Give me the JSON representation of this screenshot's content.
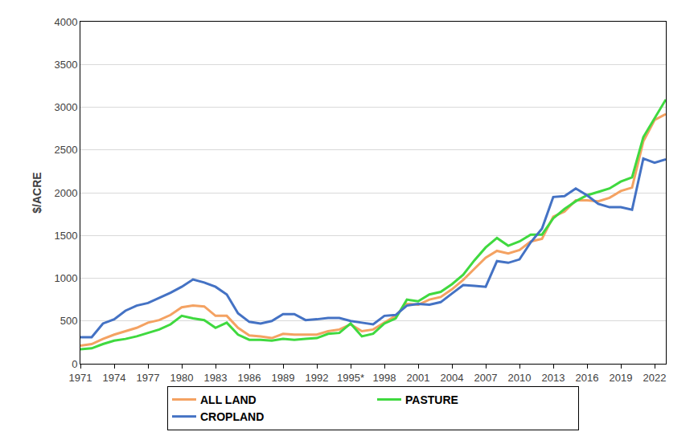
{
  "chart_data": {
    "type": "line",
    "y_label": "$/ACRE",
    "categories": [
      "1971",
      null,
      null,
      "1974",
      null,
      null,
      "1977",
      null,
      null,
      "1980",
      null,
      null,
      "1983",
      null,
      null,
      "1986",
      null,
      null,
      "1989",
      null,
      null,
      "1992",
      null,
      null,
      "1995*",
      null,
      null,
      "1998",
      null,
      null,
      "2001",
      null,
      null,
      "2004",
      null,
      null,
      "2007",
      null,
      null,
      "2010",
      null,
      null,
      "2013",
      null,
      null,
      "2016",
      null,
      null,
      "2019",
      null,
      null,
      "2022",
      null
    ],
    "series": [
      {
        "name": "ALL LAND",
        "color": "#F4A262",
        "values": [
          210,
          230,
          290,
          340,
          380,
          420,
          480,
          510,
          570,
          660,
          680,
          670,
          560,
          560,
          420,
          330,
          320,
          300,
          350,
          340,
          340,
          340,
          380,
          400,
          460,
          380,
          400,
          480,
          560,
          700,
          690,
          750,
          780,
          870,
          980,
          1110,
          1240,
          1320,
          1290,
          1330,
          1430,
          1460,
          1720,
          1780,
          1910,
          1910,
          1900,
          1940,
          2020,
          2060,
          2600,
          2850,
          2920
        ]
      },
      {
        "name": "PASTURE",
        "color": "#3FD93F",
        "values": [
          170,
          180,
          230,
          270,
          290,
          320,
          360,
          400,
          460,
          560,
          530,
          510,
          420,
          480,
          340,
          280,
          280,
          270,
          290,
          280,
          290,
          300,
          350,
          360,
          470,
          320,
          350,
          470,
          530,
          750,
          730,
          810,
          840,
          930,
          1040,
          1210,
          1360,
          1470,
          1380,
          1430,
          1510,
          1510,
          1700,
          1810,
          1900,
          1970,
          2010,
          2050,
          2130,
          2180,
          2650,
          2870,
          3090
        ]
      },
      {
        "name": "CROPLAND",
        "color": "#4472C4",
        "values": [
          310,
          310,
          470,
          520,
          620,
          680,
          710,
          770,
          830,
          900,
          985,
          950,
          900,
          810,
          590,
          490,
          470,
          500,
          580,
          580,
          510,
          520,
          535,
          535,
          500,
          480,
          460,
          560,
          570,
          680,
          700,
          690,
          720,
          820,
          920,
          910,
          900,
          1200,
          1180,
          1220,
          1420,
          1580,
          1950,
          1960,
          2050,
          1970,
          1870,
          1830,
          1830,
          1800,
          2400,
          2350,
          2390
        ]
      }
    ],
    "ylim": [
      0,
      4000
    ],
    "yticks": [
      0,
      500,
      1000,
      1500,
      2000,
      2500,
      3000,
      3500,
      4000
    ],
    "grid": true,
    "legend": "bottom"
  }
}
